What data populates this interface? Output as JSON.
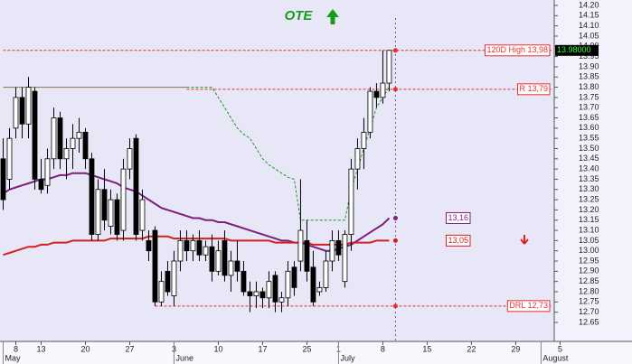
{
  "chart_data": {
    "type": "candlestick",
    "title": "OTE",
    "x": [
      0,
      1,
      2,
      3,
      4,
      5,
      6,
      7,
      8,
      9,
      10,
      11,
      12,
      13,
      14,
      15,
      16,
      17,
      18,
      19,
      20,
      21,
      22,
      23,
      24,
      25,
      26,
      27,
      28,
      29,
      30,
      31,
      32,
      33,
      34,
      35,
      36,
      37,
      38,
      39,
      40,
      41,
      42,
      43,
      44,
      45,
      46,
      47,
      48,
      49,
      50,
      51,
      52,
      53,
      54,
      55,
      56,
      57,
      58,
      59,
      60,
      61
    ],
    "open": [
      13.45,
      13.35,
      13.6,
      13.75,
      13.62,
      13.78,
      13.35,
      13.32,
      13.45,
      13.65,
      13.45,
      13.5,
      13.55,
      13.58,
      13.45,
      13.08,
      13.3,
      13.12,
      13.25,
      13.1,
      13.4,
      13.55,
      13.1,
      13.05,
      13.1,
      12.75,
      12.9,
      12.78,
      12.95,
      13.05,
      13.0,
      13.05,
      12.98,
      13.02,
      12.9,
      13.05,
      12.88,
      12.95,
      12.9,
      12.8,
      12.78,
      12.8,
      12.77,
      12.88,
      12.75,
      12.77,
      12.92,
      12.95,
      13.05,
      12.92,
      12.8,
      12.82,
      12.95,
      13.05,
      12.85,
      13.08,
      13.4,
      13.5,
      13.58,
      13.78,
      13.75,
      13.82
    ],
    "high": [
      13.55,
      13.6,
      13.8,
      13.8,
      13.85,
      13.8,
      13.45,
      13.5,
      13.7,
      13.68,
      13.55,
      13.62,
      13.65,
      13.6,
      13.48,
      13.35,
      13.4,
      13.3,
      13.28,
      13.45,
      13.55,
      13.57,
      13.3,
      13.1,
      13.12,
      12.9,
      12.95,
      13.0,
      13.1,
      13.1,
      13.08,
      13.1,
      13.05,
      13.08,
      13.05,
      13.1,
      13.0,
      13.05,
      12.95,
      12.85,
      12.85,
      12.82,
      12.9,
      12.9,
      12.8,
      12.95,
      12.95,
      13.35,
      13.15,
      13.0,
      12.85,
      13.0,
      13.1,
      13.1,
      13.1,
      13.45,
      13.55,
      13.65,
      13.8,
      13.82,
      13.98,
      13.98
    ],
    "low": [
      13.2,
      13.3,
      13.55,
      13.55,
      13.55,
      13.3,
      13.28,
      13.28,
      13.4,
      13.4,
      13.35,
      13.4,
      13.48,
      13.4,
      13.05,
      13.05,
      13.1,
      13.08,
      13.05,
      13.05,
      13.35,
      13.05,
      13.05,
      12.95,
      12.73,
      12.73,
      12.78,
      12.73,
      12.9,
      12.95,
      12.95,
      12.95,
      12.95,
      12.85,
      12.88,
      12.85,
      12.8,
      12.85,
      12.78,
      12.7,
      12.72,
      12.72,
      12.72,
      12.7,
      12.7,
      12.73,
      12.78,
      12.9,
      12.85,
      12.73,
      12.78,
      12.8,
      12.9,
      12.95,
      12.82,
      13.0,
      13.3,
      13.4,
      13.55,
      13.7,
      13.72,
      13.78
    ],
    "close": [
      13.25,
      13.55,
      13.75,
      13.62,
      13.8,
      13.35,
      13.3,
      13.45,
      13.65,
      13.45,
      13.5,
      13.55,
      13.58,
      13.45,
      13.08,
      13.3,
      13.15,
      13.25,
      13.08,
      13.4,
      13.5,
      13.08,
      13.25,
      13.0,
      12.75,
      12.85,
      12.8,
      12.95,
      13.05,
      13.0,
      13.05,
      12.98,
      13.02,
      12.9,
      13.0,
      12.88,
      12.95,
      12.9,
      12.8,
      12.78,
      12.8,
      12.77,
      12.85,
      12.75,
      12.77,
      12.9,
      12.82,
      13.1,
      12.9,
      12.75,
      12.82,
      12.95,
      13.05,
      12.98,
      13.08,
      13.4,
      13.5,
      13.58,
      13.78,
      13.75,
      13.82,
      13.98
    ],
    "series": [
      {
        "label": "13,16",
        "color": "#7b1f7b",
        "style": "solid",
        "values": [
          13.28,
          13.3,
          13.31,
          13.32,
          13.33,
          13.34,
          13.35,
          13.35,
          13.36,
          13.37,
          13.37,
          13.38,
          13.38,
          13.38,
          13.37,
          13.36,
          13.35,
          13.34,
          13.33,
          13.31,
          13.3,
          13.29,
          13.27,
          13.25,
          13.23,
          13.21,
          13.2,
          13.19,
          13.18,
          13.17,
          13.16,
          13.16,
          13.15,
          13.15,
          13.14,
          13.14,
          13.13,
          13.12,
          13.11,
          13.1,
          13.09,
          13.08,
          13.07,
          13.06,
          13.05,
          13.05,
          13.04,
          13.04,
          13.03,
          13.02,
          13.01,
          13.0,
          13.0,
          13.01,
          13.02,
          13.03,
          13.05,
          13.07,
          13.09,
          13.11,
          13.13,
          13.16
        ]
      },
      {
        "label": "13,05",
        "color": "#d32020",
        "style": "solid",
        "values": [
          12.98,
          12.99,
          13.0,
          13.01,
          13.02,
          13.02,
          13.03,
          13.03,
          13.04,
          13.04,
          13.04,
          13.05,
          13.05,
          13.05,
          13.05,
          13.05,
          13.05,
          13.06,
          13.06,
          13.06,
          13.06,
          13.06,
          13.06,
          13.07,
          13.07,
          13.07,
          13.07,
          13.06,
          13.06,
          13.06,
          13.06,
          13.06,
          13.06,
          13.06,
          13.06,
          13.06,
          13.05,
          13.05,
          13.05,
          13.05,
          13.05,
          13.05,
          13.05,
          13.04,
          13.04,
          13.04,
          13.04,
          13.04,
          13.04,
          13.03,
          13.03,
          13.03,
          13.03,
          13.03,
          13.03,
          13.04,
          13.04,
          13.04,
          13.04,
          13.05,
          13.05,
          13.05
        ]
      },
      {
        "color": "#1a9a1a",
        "style": "dashed",
        "values": [
          null,
          null,
          null,
          null,
          null,
          null,
          null,
          null,
          null,
          null,
          null,
          null,
          null,
          null,
          null,
          null,
          null,
          null,
          null,
          null,
          null,
          null,
          null,
          null,
          null,
          null,
          null,
          null,
          null,
          13.8,
          13.8,
          13.8,
          13.8,
          13.8,
          13.75,
          13.7,
          13.65,
          13.6,
          13.57,
          13.55,
          13.5,
          13.45,
          13.42,
          13.4,
          13.38,
          13.36,
          13.35,
          13.15,
          13.15,
          13.15,
          13.15,
          13.15,
          13.15,
          13.15,
          13.15,
          13.3,
          13.4,
          13.5,
          13.6,
          13.7,
          13.75,
          13.8
        ]
      }
    ],
    "segments": [
      {
        "color": "#8b7355",
        "x": [
          0,
          29
        ],
        "values": [
          13.8,
          13.8
        ]
      }
    ],
    "levels": [
      {
        "label": "120D High 13,98",
        "value": 13.98,
        "x_start": 0,
        "color": "#e53030"
      },
      {
        "label": "R 13,79",
        "value": 13.79,
        "x_start": 29,
        "color": "#e53030"
      },
      {
        "label": "DRL 12,73",
        "value": 12.73,
        "x_start": 24,
        "color": "#e53030"
      }
    ],
    "last_price": {
      "value": 13.98,
      "label": "13.98000"
    },
    "xlim": [
      -0.5,
      88.8
    ],
    "xticks": [
      {
        "value": 2,
        "label": "8"
      },
      {
        "value": 6,
        "label": "13"
      },
      {
        "value": 13,
        "label": "20"
      },
      {
        "value": 20,
        "label": "27"
      },
      {
        "value": 27,
        "label": "3"
      },
      {
        "value": 34,
        "label": "10"
      },
      {
        "value": 41,
        "label": "17"
      },
      {
        "value": 48,
        "label": "25"
      },
      {
        "value": 53,
        "label": "1"
      },
      {
        "value": 60,
        "label": "8"
      },
      {
        "value": 67,
        "label": "15"
      },
      {
        "value": 74,
        "label": "22"
      },
      {
        "value": 81,
        "label": "29"
      },
      {
        "value": 88,
        "label": "5"
      }
    ],
    "month_ticks": [
      {
        "value": 0,
        "label": "May"
      },
      {
        "value": 27,
        "label": "June"
      },
      {
        "value": 53,
        "label": "July"
      },
      {
        "value": 85,
        "label": "August"
      }
    ],
    "ylim": [
      12.557,
      14.2265
    ],
    "yticks": [
      {
        "value": 12.65,
        "label": "12.65"
      },
      {
        "value": 12.7,
        "label": "12.70"
      },
      {
        "value": 12.75,
        "label": "12.75"
      },
      {
        "value": 12.8,
        "label": "12.80"
      },
      {
        "value": 12.85,
        "label": "12.85"
      },
      {
        "value": 12.9,
        "label": "12.90"
      },
      {
        "value": 12.95,
        "label": "12.95"
      },
      {
        "value": 13,
        "label": "13.00"
      },
      {
        "value": 13.05,
        "label": "13.05"
      },
      {
        "value": 13.1,
        "label": "13.10"
      },
      {
        "value": 13.15,
        "label": "13.15"
      },
      {
        "value": 13.2,
        "label": "13.20"
      },
      {
        "value": 13.25,
        "label": "13.25"
      },
      {
        "value": 13.3,
        "label": "13.30"
      },
      {
        "value": 13.35,
        "label": "13.35"
      },
      {
        "value": 13.4,
        "label": "13.40"
      },
      {
        "value": 13.45,
        "label": "13.45"
      },
      {
        "value": 13.5,
        "label": "13.50"
      },
      {
        "value": 13.55,
        "label": "13.55"
      },
      {
        "value": 13.6,
        "label": "13.60"
      },
      {
        "value": 13.65,
        "label": "13.65"
      },
      {
        "value": 13.7,
        "label": "13.70"
      },
      {
        "value": 13.75,
        "label": "13.75"
      },
      {
        "value": 13.8,
        "label": "13.80"
      },
      {
        "value": 13.85,
        "label": "13.85"
      },
      {
        "value": 13.9,
        "label": "13.90"
      },
      {
        "value": 13.95,
        "label": "13.95"
      },
      {
        "value": 14,
        "label": "14.00"
      },
      {
        "value": 14.05,
        "label": "14.05"
      },
      {
        "value": 14.1,
        "label": "14.10"
      },
      {
        "value": 14.15,
        "label": "14.15"
      },
      {
        "value": 14.2,
        "label": "14.20"
      }
    ]
  }
}
